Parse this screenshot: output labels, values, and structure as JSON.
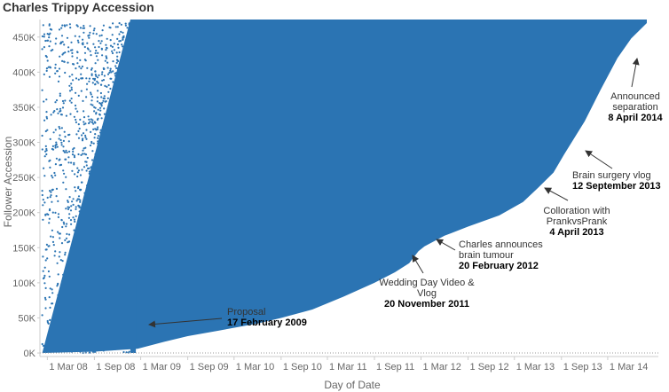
{
  "chart_data": {
    "type": "area",
    "title": "Charles Trippy Accession",
    "xlabel": "Day of Date",
    "ylabel": "Follower Accession",
    "x_ticks": [
      "1 Mar 08",
      "1 Sep 08",
      "1 Mar 09",
      "1 Sep 09",
      "1 Mar 10",
      "1 Sep 10",
      "1 Mar 11",
      "1 Sep 11",
      "1 Mar 12",
      "1 Sep 12",
      "1 Mar 13",
      "1 Sep 13",
      "1 Mar 14"
    ],
    "y_ticks": [
      "0K",
      "50K",
      "100K",
      "150K",
      "200K",
      "250K",
      "300K",
      "350K",
      "400K",
      "450K"
    ],
    "ylim": [
      -5000,
      475000
    ],
    "xlim": [
      "2008-02-01",
      "2014-09-15"
    ],
    "grid": false,
    "color": "#2b74b3",
    "series": [
      {
        "x": [
          "2008-02-10",
          "2008-09-01",
          "2009-02-17",
          "2009-06-01",
          "2009-09-01",
          "2010-01-01",
          "2010-06-01",
          "2010-09-01",
          "2011-01-01",
          "2011-05-01",
          "2011-09-01",
          "2011-11-20",
          "2012-01-15",
          "2012-02-20",
          "2012-03-15",
          "2012-06-01",
          "2012-09-01",
          "2013-01-01",
          "2013-04-04",
          "2013-06-01",
          "2013-08-01",
          "2013-09-12",
          "2013-12-01",
          "2014-02-01",
          "2014-04-08",
          "2014-06-01",
          "2014-08-01"
        ],
        "values": [
          0,
          2000,
          6000,
          16000,
          24000,
          32000,
          42000,
          50000,
          62000,
          80000,
          100000,
          115000,
          128000,
          145000,
          152000,
          167000,
          180000,
          196000,
          215000,
          235000,
          257000,
          283000,
          330000,
          375000,
          420000,
          448000,
          470000
        ]
      }
    ],
    "scatter_region": {
      "from": "2008-02-10",
      "to": "2009-02-10",
      "ymax": 470000
    },
    "annotations": [
      {
        "text": [
          "Proposal"
        ],
        "date_label": "17 February 2009",
        "date": "2009-02-17"
      },
      {
        "text": [
          "Wedding Day Video &",
          "Vlog"
        ],
        "date_label": "20 November 2011",
        "date": "2011-11-20"
      },
      {
        "text": [
          "Charles announces",
          "brain tumour"
        ],
        "date_label": "20 February 2012",
        "date": "2012-02-20"
      },
      {
        "text": [
          "Colloration with",
          "PrankvsPrank"
        ],
        "date_label": "4 April 2013",
        "date": "2013-04-04"
      },
      {
        "text": [
          "Brain surgery vlog"
        ],
        "date_label": "12 September 2013",
        "date": "2013-09-12"
      },
      {
        "text": [
          "Announced",
          "separation"
        ],
        "date_label": "8 April 2014",
        "date": "2014-04-08"
      }
    ]
  }
}
